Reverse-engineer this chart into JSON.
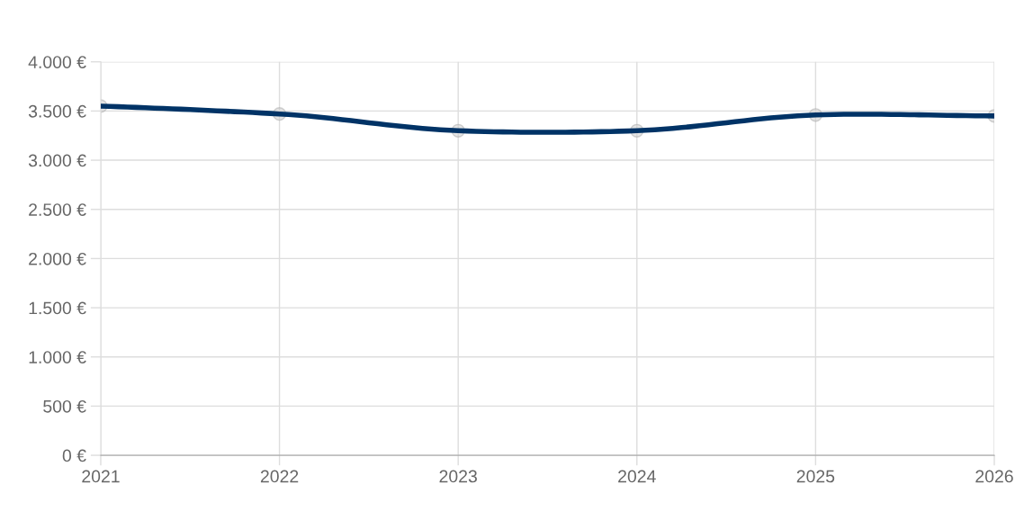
{
  "chart_data": {
    "type": "line",
    "categories": [
      "2021",
      "2022",
      "2023",
      "2024",
      "2025",
      "2026"
    ],
    "series": [
      {
        "color": "#003366",
        "values": [
          3550,
          3470,
          3300,
          3300,
          3460,
          3450
        ]
      }
    ],
    "ylim": [
      0,
      4000
    ],
    "yticks": [
      {
        "value": 0,
        "label": "0 €"
      },
      {
        "value": 500,
        "label": "500 €"
      },
      {
        "value": 1000,
        "label": "1.000 €"
      },
      {
        "value": 1500,
        "label": "1.500 €"
      },
      {
        "value": 2000,
        "label": "2.000 €"
      },
      {
        "value": 2500,
        "label": "2.500 €"
      },
      {
        "value": 3000,
        "label": "3.000 €"
      },
      {
        "value": 3500,
        "label": "3.500 €"
      },
      {
        "value": 4000,
        "label": "4.000 €"
      }
    ],
    "grid": true,
    "marker": "circle",
    "line_style": "solid"
  }
}
